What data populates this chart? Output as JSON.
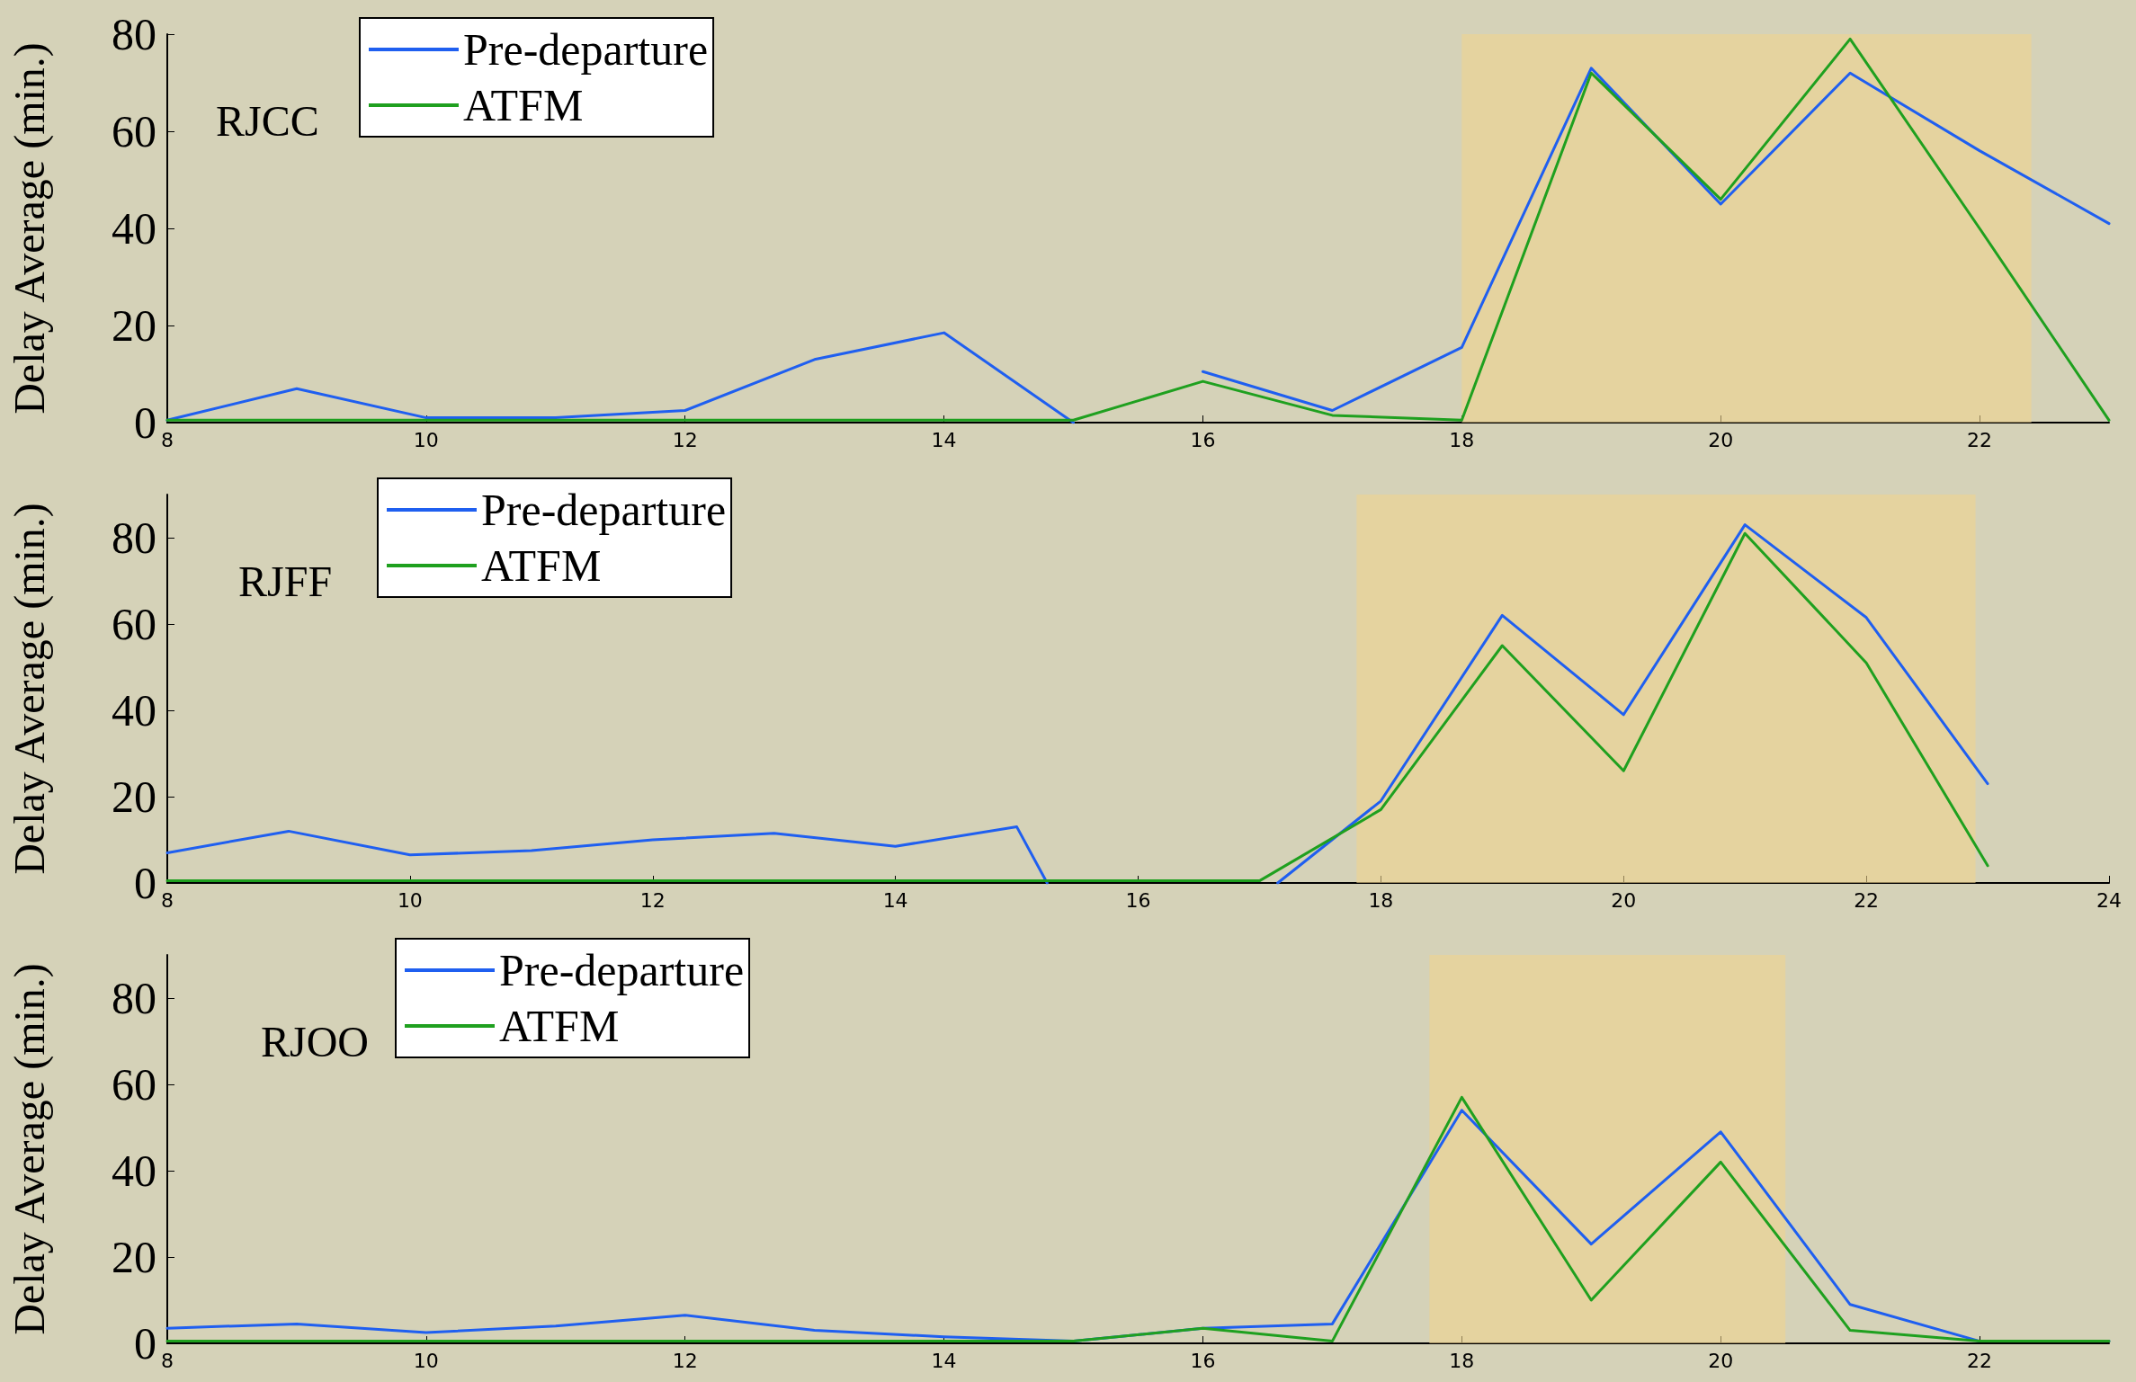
{
  "chart_data": [
    {
      "type": "line",
      "ylabel": "Delay Average (min.)",
      "annotations": [
        "RJCC"
      ],
      "xlim": [
        8,
        23
      ],
      "xticks": [
        8,
        10,
        12,
        14,
        16,
        18,
        20,
        22
      ],
      "ylim": [
        0,
        80
      ],
      "yticks": [
        0,
        20,
        40,
        60,
        80
      ],
      "legend": "top left",
      "grid": false,
      "marker": "none",
      "line_style": "solid",
      "bands": [
        {
          "axis": "x",
          "from": 18,
          "to": 22.4,
          "color": "#f0d48e"
        }
      ],
      "series": [
        {
          "name": "Pre-departure",
          "color": "#1f5ff0",
          "x": [
            8,
            9,
            10,
            11,
            12,
            13,
            14,
            15,
            15.1,
            16,
            17,
            18,
            19,
            20,
            21,
            22,
            23
          ],
          "values": [
            0.5,
            7,
            1,
            1,
            2.5,
            13,
            18.5,
            0,
            null,
            10.5,
            2.5,
            15.5,
            73,
            45,
            72,
            56,
            41
          ]
        },
        {
          "name": "ATFM",
          "color": "#1fa01f",
          "x": [
            8,
            9,
            10,
            11,
            12,
            13,
            14,
            15,
            16,
            17,
            18,
            19,
            20,
            21,
            22,
            23
          ],
          "values": [
            0.5,
            0.5,
            0.5,
            0.5,
            0.5,
            0.5,
            0.5,
            0.5,
            8.5,
            1.5,
            0.5,
            72,
            46,
            79,
            40,
            0.5
          ]
        }
      ]
    },
    {
      "type": "line",
      "ylabel": "Delay Average (min.)",
      "annotations": [
        "RJFF"
      ],
      "xlim": [
        8,
        24
      ],
      "xticks": [
        8,
        10,
        12,
        14,
        16,
        18,
        20,
        22,
        24
      ],
      "ylim": [
        0,
        90
      ],
      "yticks": [
        0,
        20,
        40,
        60,
        80
      ],
      "legend": "top left",
      "grid": false,
      "marker": "none",
      "line_style": "solid",
      "bands": [
        {
          "axis": "x",
          "from": 17.8,
          "to": 22.9,
          "color": "#f0d48e"
        }
      ],
      "series": [
        {
          "name": "Pre-departure",
          "color": "#1f5ff0",
          "x": [
            8,
            9,
            10,
            11,
            12,
            13,
            14,
            15,
            15.25,
            16,
            17.15,
            18,
            19,
            20,
            21,
            22,
            23
          ],
          "values": [
            7,
            12,
            6.5,
            7.5,
            10,
            11.5,
            8.5,
            13,
            0,
            null,
            0,
            19,
            62,
            39,
            83,
            61.5,
            23
          ]
        },
        {
          "name": "ATFM",
          "color": "#1fa01f",
          "x": [
            8,
            9,
            10,
            11,
            12,
            13,
            14,
            15,
            16,
            17,
            18,
            19,
            20,
            21,
            22,
            23
          ],
          "values": [
            0.5,
            0.5,
            0.5,
            0.5,
            0.5,
            0.5,
            0.5,
            0.5,
            0.5,
            0.5,
            17,
            55,
            26,
            81,
            51,
            4
          ]
        }
      ]
    },
    {
      "type": "line",
      "ylabel": "Delay Average (min.)",
      "annotations": [
        "RJOO"
      ],
      "xlim": [
        8,
        23
      ],
      "xticks": [
        8,
        10,
        12,
        14,
        16,
        18,
        20,
        22
      ],
      "ylim": [
        0,
        90
      ],
      "yticks": [
        0,
        20,
        40,
        60,
        80
      ],
      "legend": "top left",
      "grid": false,
      "marker": "none",
      "line_style": "solid",
      "bands": [
        {
          "axis": "x",
          "from": 17.75,
          "to": 20.5,
          "color": "#f0d48e"
        }
      ],
      "series": [
        {
          "name": "Pre-departure",
          "color": "#1f5ff0",
          "x": [
            8,
            9,
            10,
            11,
            12,
            13,
            14,
            15,
            16,
            17,
            18,
            19,
            20,
            21,
            22,
            23
          ],
          "values": [
            3.5,
            4.5,
            2.5,
            4,
            6.5,
            3,
            1.5,
            0.5,
            3.5,
            4.5,
            54,
            23,
            49,
            9,
            0.5,
            0.5
          ]
        },
        {
          "name": "ATFM",
          "color": "#1fa01f",
          "x": [
            8,
            9,
            10,
            11,
            12,
            13,
            14,
            15,
            16,
            17,
            18,
            19,
            20,
            21,
            22,
            23
          ],
          "values": [
            0.5,
            0.5,
            0.5,
            0.5,
            0.5,
            0.5,
            0.5,
            0.5,
            3.5,
            0.5,
            57,
            10,
            42,
            3,
            0.5,
            0.5
          ]
        }
      ]
    }
  ]
}
